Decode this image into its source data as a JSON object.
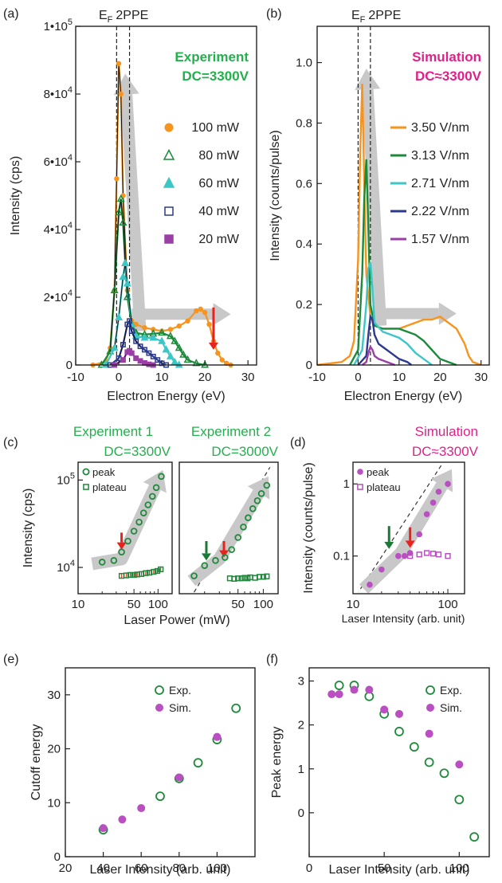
{
  "colors": {
    "orange": "#f7941d",
    "green": "#1b8a3a",
    "cyan": "#3cc6c6",
    "navy": "#2b3a8f",
    "purple": "#9b3fa6",
    "magenta": "#e0218a",
    "textgreen": "#22b14c",
    "gray": "#c8c8c8",
    "red": "#e8231e",
    "darkgreen": "#1a7a35",
    "dark": "#222222",
    "simpurple": "#b94fc0",
    "exp_green": "#1f8a3b"
  },
  "chart_data": [
    {
      "panel": "(a)",
      "type": "line",
      "annotation_top": "E_F 2PPE",
      "annotation_ef": "E",
      "annotation_ef_sub": "F",
      "annotation_2ppe": "2PPE",
      "label_line1": "Experiment",
      "label_line2": "DC=3300V",
      "xlabel": "Electron Energy (eV)",
      "ylabel": "Intensity (cps)",
      "xlim": [
        -10,
        32
      ],
      "ylim": [
        0,
        100000
      ],
      "xticks": [
        -10,
        0,
        10,
        20,
        30
      ],
      "yticks": [
        {
          "v": 0,
          "label": "0"
        },
        {
          "v": 20000,
          "label": "2•10"
        },
        {
          "v": 40000,
          "label": "4•10"
        },
        {
          "v": 60000,
          "label": "6•10"
        },
        {
          "v": 80000,
          "label": "8•10"
        },
        {
          "v": 100000,
          "label": "1•10"
        }
      ],
      "ytick_exp": [
        "",
        "4",
        "4",
        "4",
        "4",
        "5"
      ],
      "series": [
        {
          "name": "100 mW",
          "marker": "circle",
          "color": "orange",
          "x": [
            -6,
            -3,
            -2,
            -1,
            -0.5,
            0,
            0.5,
            1,
            2,
            3,
            4,
            6,
            8,
            10,
            12,
            14,
            16,
            18,
            19,
            20,
            21,
            22,
            23,
            24,
            25,
            26
          ],
          "y": [
            0,
            1000,
            5000,
            22000,
            55000,
            89000,
            80000,
            50000,
            22000,
            13000,
            12000,
            11000,
            10500,
            10000,
            10500,
            11500,
            13000,
            16000,
            16500,
            15500,
            12000,
            7000,
            3500,
            1500,
            500,
            0
          ]
        },
        {
          "name": "80 mW",
          "marker": "triangle-open",
          "color": "green",
          "x": [
            -4,
            -2,
            -1,
            0,
            0.5,
            1,
            1.5,
            2,
            3,
            4,
            6,
            8,
            10,
            12,
            13,
            14,
            15,
            16,
            18,
            20
          ],
          "y": [
            0,
            4000,
            22000,
            45000,
            49000,
            42000,
            30000,
            20000,
            12000,
            9500,
            9000,
            9200,
            9500,
            8500,
            7000,
            5000,
            3000,
            1500,
            500,
            0
          ]
        },
        {
          "name": "60 mW",
          "marker": "triangle-filled",
          "color": "cyan",
          "x": [
            -3,
            -1,
            0,
            1,
            1.5,
            2,
            3,
            4,
            6,
            8,
            10,
            11,
            12,
            13,
            14
          ],
          "y": [
            0,
            5000,
            14000,
            26000,
            30000,
            24000,
            12000,
            8500,
            8000,
            8000,
            7000,
            4500,
            2500,
            800,
            0
          ]
        },
        {
          "name": "40 mW",
          "marker": "square-open",
          "color": "navy",
          "x": [
            -2,
            0,
            1,
            2,
            2.5,
            3,
            4,
            5,
            6,
            7,
            8,
            9,
            10,
            11
          ],
          "y": [
            0,
            2000,
            6000,
            12000,
            13000,
            10000,
            7000,
            5500,
            4500,
            3500,
            2500,
            1500,
            500,
            0
          ]
        },
        {
          "name": "20 mW",
          "marker": "square-filled",
          "color": "purple",
          "x": [
            -1,
            1,
            2,
            2.5,
            3,
            4,
            5,
            6,
            7,
            8
          ],
          "y": [
            0,
            1500,
            3800,
            4200,
            3500,
            2000,
            1200,
            600,
            200,
            0
          ]
        }
      ]
    },
    {
      "panel": "(b)",
      "type": "line",
      "annotation_ef": "E",
      "annotation_ef_sub": "F",
      "annotation_2ppe": "2PPE",
      "label_line1": "Simulation",
      "label_line2": "DC≈3300V",
      "xlabel": "Electron Energy (eV)",
      "ylabel": "Intensity (counts/pulse)",
      "xlim": [
        -10,
        32
      ],
      "ylim": [
        0,
        1.12
      ],
      "xticks": [
        -10,
        0,
        10,
        20,
        30
      ],
      "yticks": [
        0,
        0.2,
        0.4,
        0.6,
        0.8,
        1.0
      ],
      "ytick_labels": [
        "0",
        "0.2",
        "0.4",
        "0.6",
        "0.8",
        "1.0"
      ],
      "series": [
        {
          "name": "3.50 V/nm",
          "color": "orange",
          "x": [
            -10,
            -4,
            -2,
            -1,
            0,
            0.5,
            1,
            1.5,
            2,
            3,
            4,
            6,
            8,
            10,
            12,
            14,
            16,
            18,
            20,
            22,
            24,
            26,
            27,
            28,
            30
          ],
          "y": [
            0,
            0.01,
            0.03,
            0.08,
            0.35,
            0.7,
            0.93,
            0.6,
            0.3,
            0.16,
            0.13,
            0.12,
            0.12,
            0.12,
            0.13,
            0.14,
            0.15,
            0.15,
            0.16,
            0.14,
            0.12,
            0.07,
            0.03,
            0.01,
            0
          ]
        },
        {
          "name": "3.13 V/nm",
          "color": "green",
          "x": [
            -2,
            0,
            1,
            1.5,
            2,
            2.5,
            3,
            4,
            6,
            8,
            10,
            12,
            14,
            16,
            18,
            20,
            22,
            24
          ],
          "y": [
            0,
            0.05,
            0.3,
            0.55,
            0.68,
            0.45,
            0.2,
            0.13,
            0.12,
            0.12,
            0.12,
            0.11,
            0.1,
            0.08,
            0.05,
            0.02,
            0.01,
            0
          ]
        },
        {
          "name": "2.71 V/nm",
          "color": "cyan",
          "x": [
            -1,
            1,
            2,
            2.5,
            3,
            3.5,
            4,
            6,
            8,
            10,
            12,
            14,
            16,
            17,
            18
          ],
          "y": [
            0,
            0.05,
            0.2,
            0.32,
            0.34,
            0.25,
            0.14,
            0.11,
            0.1,
            0.09,
            0.07,
            0.04,
            0.02,
            0.01,
            0
          ]
        },
        {
          "name": "2.22 V/nm",
          "color": "navy",
          "x": [
            0,
            2,
            2.5,
            3,
            3.5,
            4,
            5,
            6,
            8,
            10,
            12,
            13
          ],
          "y": [
            0,
            0.03,
            0.1,
            0.16,
            0.15,
            0.1,
            0.07,
            0.06,
            0.04,
            0.02,
            0.01,
            0
          ]
        },
        {
          "name": "1.57 V/nm",
          "color": "purple",
          "x": [
            1,
            2,
            2.5,
            3,
            3.5,
            4,
            5,
            6,
            7,
            8,
            9
          ],
          "y": [
            0,
            0.01,
            0.04,
            0.06,
            0.05,
            0.03,
            0.02,
            0.015,
            0.01,
            0.005,
            0
          ]
        }
      ]
    },
    {
      "panel": "(c)",
      "type": "scatter",
      "title_left_line1": "Experiment 1",
      "title_left_line2": "DC=3300V",
      "title_right_line1": "Experiment 2",
      "title_right_line2": "DC=3000V",
      "xlabel": "Laser  Power (mW)",
      "ylabel": "Intensity (cps)",
      "yscale": "log",
      "xscale": "log",
      "xlim": [
        10,
        150
      ],
      "ylim": [
        5000,
        160000
      ],
      "xtick_labels_left": [
        "10",
        "50",
        "100"
      ],
      "xtick_labels_right": [
        "50",
        "100"
      ],
      "ytick_left": [
        {
          "v": 10000,
          "b": "10",
          "e": "4"
        },
        {
          "v": 100000,
          "b": "10",
          "e": "5"
        }
      ],
      "legend": [
        "peak",
        "plateau"
      ],
      "left": {
        "peak": {
          "x": [
            20,
            28,
            35,
            42,
            50,
            58,
            66,
            75,
            85,
            95,
            110
          ],
          "y": [
            11500,
            12000,
            15000,
            20000,
            26000,
            33000,
            42000,
            52000,
            65000,
            82000,
            110000
          ]
        },
        "plateau": {
          "x": [
            35,
            40,
            45,
            50,
            55,
            62,
            70,
            78,
            88,
            98,
            108
          ],
          "y": [
            8000,
            8100,
            8200,
            8200,
            8300,
            8400,
            8600,
            8700,
            8900,
            9100,
            9500
          ]
        }
      },
      "right": {
        "peak": {
          "x": [
            15,
            20,
            27,
            35,
            42,
            50,
            58,
            66,
            75,
            85,
            95,
            110
          ],
          "y": [
            8000,
            10500,
            12000,
            13000,
            16000,
            22000,
            29000,
            37000,
            47000,
            58000,
            70000,
            87000
          ]
        },
        "plateau": {
          "x": [
            40,
            45,
            50,
            55,
            60,
            65,
            70,
            80,
            90,
            100,
            110
          ],
          "y": [
            7500,
            7400,
            7500,
            7500,
            7600,
            7500,
            7700,
            7600,
            7800,
            7800,
            7900
          ]
        }
      }
    },
    {
      "panel": "(d)",
      "type": "scatter",
      "title_line1": "Simulation",
      "title_line2": "DC≈3300V",
      "xlabel": "Laser Intensity (arb. unit)",
      "ylabel": "Intensity (counts/pulse)",
      "yscale": "log",
      "xscale": "log",
      "xlim": [
        10,
        150
      ],
      "ylim": [
        0.03,
        2
      ],
      "xtick_labels": [
        "10",
        "100"
      ],
      "ytick_labels": [
        "0.1",
        "1"
      ],
      "legend": [
        "peak",
        "plateau"
      ],
      "peak": {
        "x": [
          15,
          20,
          30,
          35,
          40,
          50,
          60,
          70,
          80,
          100
        ],
        "y": [
          0.04,
          0.065,
          0.1,
          0.1,
          0.11,
          0.2,
          0.38,
          0.55,
          0.78,
          1.0
        ]
      },
      "plateau": {
        "x": [
          40,
          50,
          60,
          70,
          80,
          100
        ],
        "y": [
          0.1,
          0.105,
          0.11,
          0.108,
          0.105,
          0.1
        ]
      }
    },
    {
      "panel": "(e)",
      "type": "scatter",
      "xlabel": "Laser Intensity (arb. unit)",
      "ylabel": "Cutoff energy",
      "xlim": [
        20,
        120
      ],
      "ylim": [
        0,
        35
      ],
      "xticks": [
        20,
        40,
        60,
        80,
        100
      ],
      "yticks": [
        0,
        10,
        20,
        30
      ],
      "legend": [
        "Exp.",
        "Sim."
      ],
      "series": [
        {
          "name": "Exp.",
          "marker": "circle-open",
          "x": [
            40,
            70,
            80,
            90,
            100,
            110
          ],
          "y": [
            5,
            11.2,
            14.5,
            17.4,
            21.7,
            27.5
          ]
        },
        {
          "name": "Sim.",
          "marker": "circle-filled",
          "x": [
            40,
            50,
            60,
            80,
            100
          ],
          "y": [
            5.3,
            6.9,
            9,
            14.7,
            22.2
          ]
        }
      ]
    },
    {
      "panel": "(f)",
      "type": "scatter",
      "xlabel": "Laser Intensity (arb. unit)",
      "ylabel": "Peak energy",
      "xlim": [
        0,
        120
      ],
      "ylim": [
        -1,
        3.3
      ],
      "xticks": [
        0,
        50,
        100
      ],
      "yticks": [
        0,
        1,
        2,
        3
      ],
      "legend": [
        "Exp.",
        "Sim."
      ],
      "series": [
        {
          "name": "Exp.",
          "marker": "circle-open",
          "x": [
            20,
            30,
            40,
            50,
            60,
            70,
            80,
            90,
            100,
            110
          ],
          "y": [
            2.9,
            2.9,
            2.65,
            2.25,
            1.85,
            1.5,
            1.15,
            0.9,
            0.3,
            -0.55
          ]
        },
        {
          "name": "Sim.",
          "marker": "circle-filled",
          "x": [
            15,
            20,
            30,
            40,
            50,
            60,
            80,
            100
          ],
          "y": [
            2.7,
            2.7,
            2.8,
            2.8,
            2.35,
            2.25,
            1.8,
            1.1
          ]
        }
      ]
    }
  ]
}
